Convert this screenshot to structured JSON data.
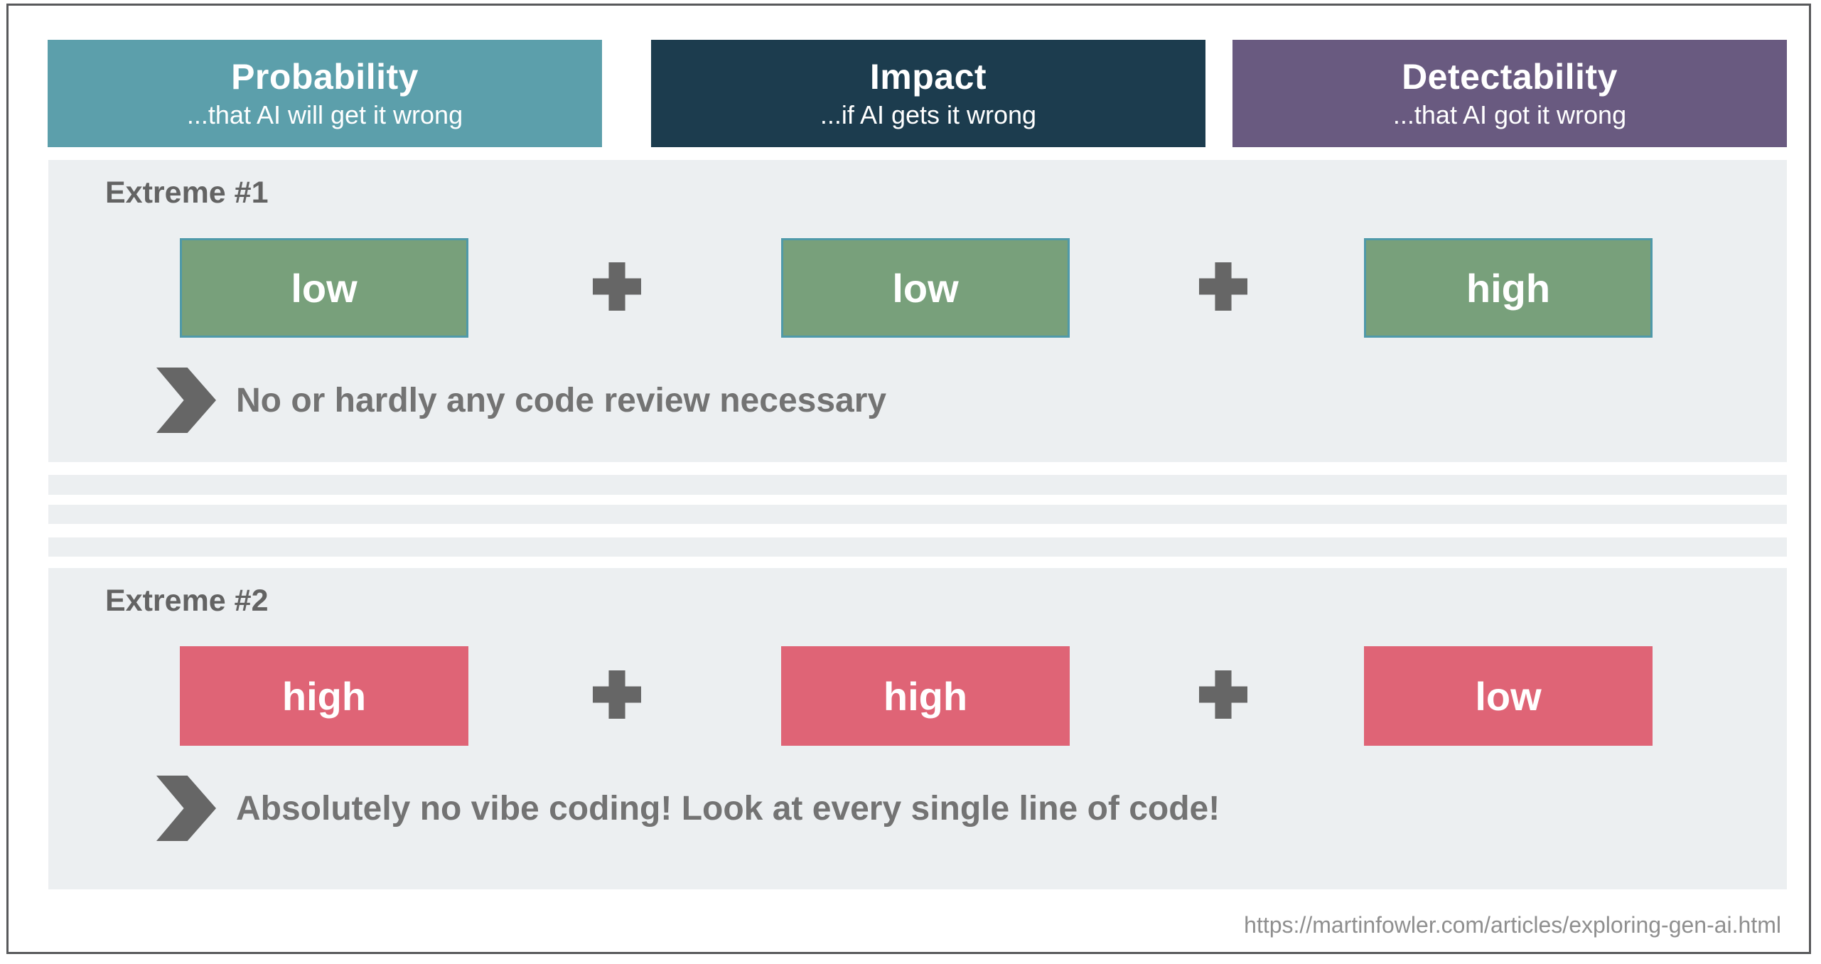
{
  "palette": {
    "probability_teal": "#5c9fab",
    "impact_navy": "#1c3c4e",
    "detectability_purple": "#695a80",
    "favorable_green": "#78a07b",
    "green_box_border_teal": "#4f99a9",
    "unfavorable_pink": "#df6476",
    "section_background_gray": "#eceff1",
    "icon_dark_gray": "#666666",
    "note_text_gray": "#737373",
    "url_text_gray": "#8f8f8f",
    "frame_border_gray": "#58595b"
  },
  "headers": [
    {
      "title": "Probability",
      "subtitle": "...that AI will get it wrong",
      "color": "#5c9fab"
    },
    {
      "title": "Impact",
      "subtitle": "...if AI gets it wrong",
      "color": "#1c3c4e"
    },
    {
      "title": "Detectability",
      "subtitle": "...that AI got it wrong",
      "color": "#695a80"
    }
  ],
  "sections": [
    {
      "label": "Extreme #1",
      "tone": "green",
      "values": [
        "low",
        "low",
        "high"
      ],
      "note": "No or hardly any code review necessary"
    },
    {
      "label": "Extreme #2",
      "tone": "red",
      "values": [
        "high",
        "high",
        "low"
      ],
      "note": "Absolutely no vibe coding! Look at every single line of code!"
    }
  ],
  "footer": {
    "source_url": "https://martinfowler.com/articles/exploring-gen-ai.html"
  }
}
